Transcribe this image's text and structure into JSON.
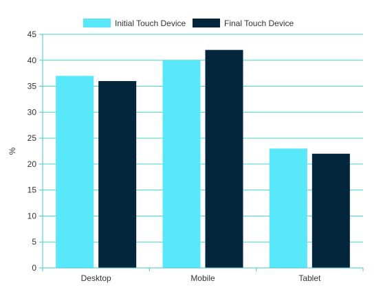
{
  "chart_data": {
    "type": "bar",
    "title": "",
    "xlabel": "",
    "ylabel": "%",
    "categories": [
      "Desktop",
      "Mobile",
      "Tablet"
    ],
    "ylim": [
      0,
      45
    ],
    "yticks": [
      0,
      5,
      10,
      15,
      20,
      25,
      30,
      35,
      40,
      45
    ],
    "grid": true,
    "legend_position": "top-center",
    "series": [
      {
        "name": "Initial Touch Device",
        "color": "#58e8fa",
        "values": [
          37,
          40,
          23
        ]
      },
      {
        "name": "Final Touch Device",
        "color": "#03263c",
        "values": [
          36,
          42,
          22
        ]
      }
    ],
    "colors": {
      "grid": "#40d8d0",
      "axis": "#40c8c8"
    }
  }
}
